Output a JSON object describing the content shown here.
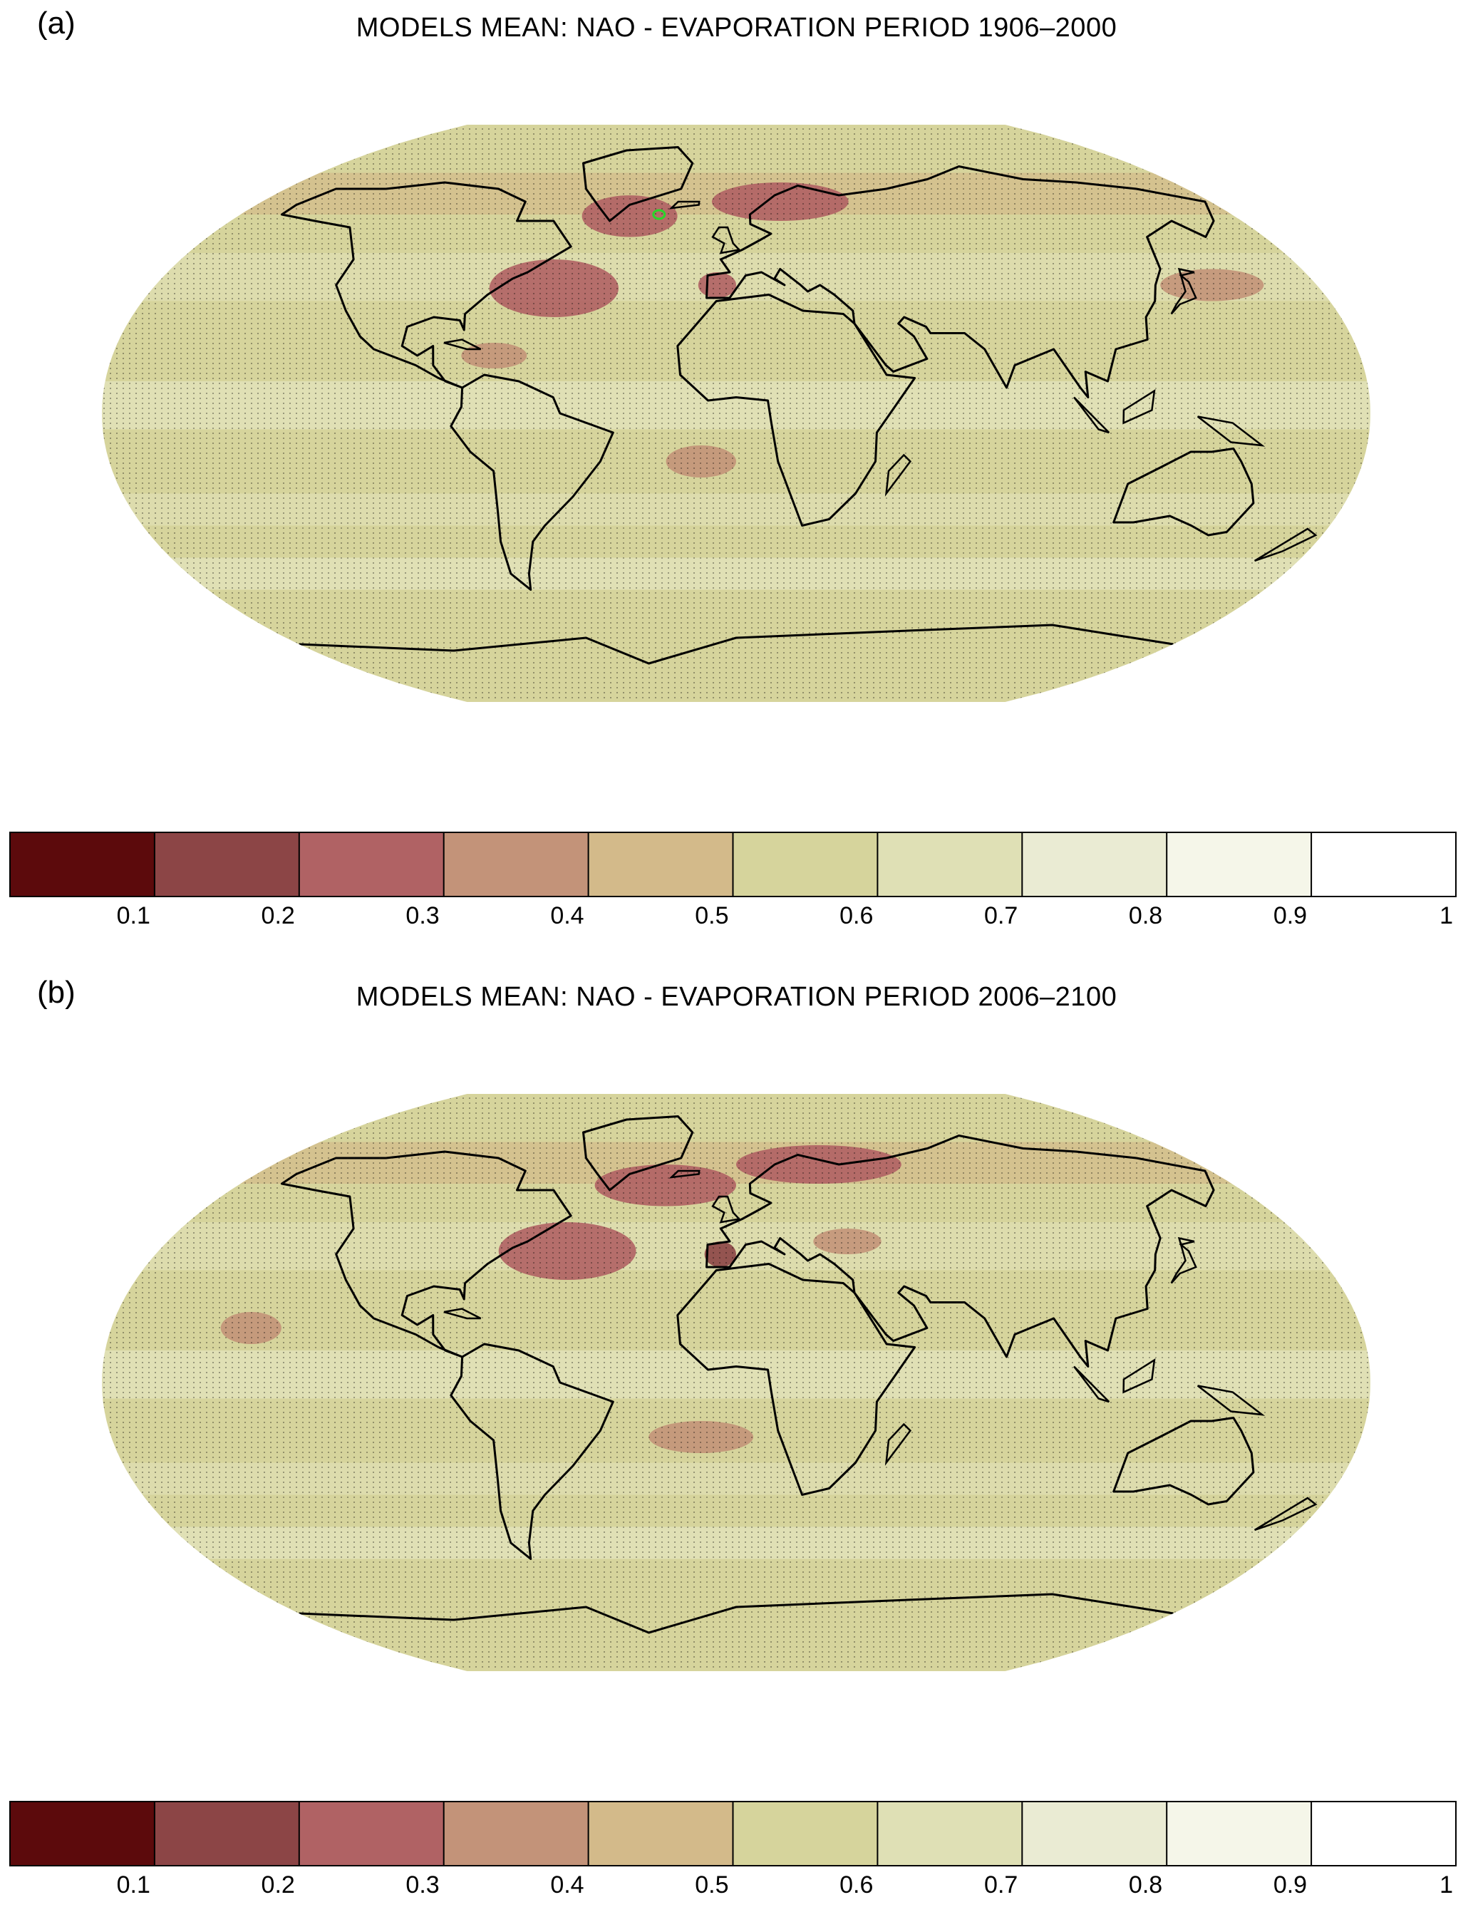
{
  "colorscale": {
    "colors": [
      "#5c0a0c",
      "#8c4546",
      "#b06264",
      "#c39379",
      "#d3ba8a",
      "#d6d49c",
      "#dfe0b5",
      "#eaebd3",
      "#f5f6e9",
      "#ffffff"
    ],
    "ticks": [
      "0.1",
      "0.2",
      "0.3",
      "0.4",
      "0.5",
      "0.6",
      "0.7",
      "0.8",
      "0.9",
      "1"
    ],
    "min": 0,
    "max": 1
  },
  "land_color": "#000000",
  "highlight_color": "#29d629",
  "panels": [
    {
      "label": "(a)",
      "title": "MODELS MEAN: NAO - EVAPORATION PERIOD 1906–2000",
      "period": "1906–2000",
      "features": [
        {
          "name": "gulf-stream-band",
          "lon": [
            -80,
            -35
          ],
          "lat": [
            30,
            48
          ],
          "value": 0.25
        },
        {
          "name": "labrador-sea-band",
          "lon": [
            -60,
            -20
          ],
          "lat": [
            55,
            68
          ],
          "value": 0.25
        },
        {
          "name": "norwegian-sea-band",
          "lon": [
            -10,
            40
          ],
          "lat": [
            60,
            72
          ],
          "value": 0.28
        },
        {
          "name": "iberia-patch",
          "lon": [
            -12,
            0
          ],
          "lat": [
            36,
            44
          ],
          "value": 0.28
        },
        {
          "name": "caribbean-patch",
          "lon": [
            -80,
            -60
          ],
          "lat": [
            14,
            22
          ],
          "value": 0.35
        },
        {
          "name": "south-atlantic-patch",
          "lon": [
            -20,
            0
          ],
          "lat": [
            -20,
            -10
          ],
          "value": 0.38
        },
        {
          "name": "north-pacific-patch",
          "lon": [
            135,
            160
          ],
          "lat": [
            35,
            45
          ],
          "value": 0.35
        }
      ]
    },
    {
      "label": "(b)",
      "title": "MODELS MEAN: NAO - EVAPORATION PERIOD 2006–2100",
      "period": "2006–2100",
      "features": [
        {
          "name": "gulf-stream-band",
          "lon": [
            -78,
            -30
          ],
          "lat": [
            32,
            50
          ],
          "value": 0.22
        },
        {
          "name": "subpolar-atlantic-band",
          "lon": [
            -55,
            0
          ],
          "lat": [
            55,
            68
          ],
          "value": 0.25
        },
        {
          "name": "norwegian-sea-band",
          "lon": [
            0,
            60
          ],
          "lat": [
            62,
            74
          ],
          "value": 0.25
        },
        {
          "name": "iberia-patch",
          "lon": [
            -10,
            0
          ],
          "lat": [
            36,
            44
          ],
          "value": 0.18
        },
        {
          "name": "black-sea-patch",
          "lon": [
            25,
            45
          ],
          "lat": [
            40,
            48
          ],
          "value": 0.32
        },
        {
          "name": "south-atlantic-patch",
          "lon": [
            -25,
            5
          ],
          "lat": [
            -22,
            -12
          ],
          "value": 0.35
        },
        {
          "name": "east-pacific-patch",
          "lon": [
            -150,
            -130
          ],
          "lat": [
            12,
            22
          ],
          "value": 0.38
        }
      ]
    }
  ]
}
